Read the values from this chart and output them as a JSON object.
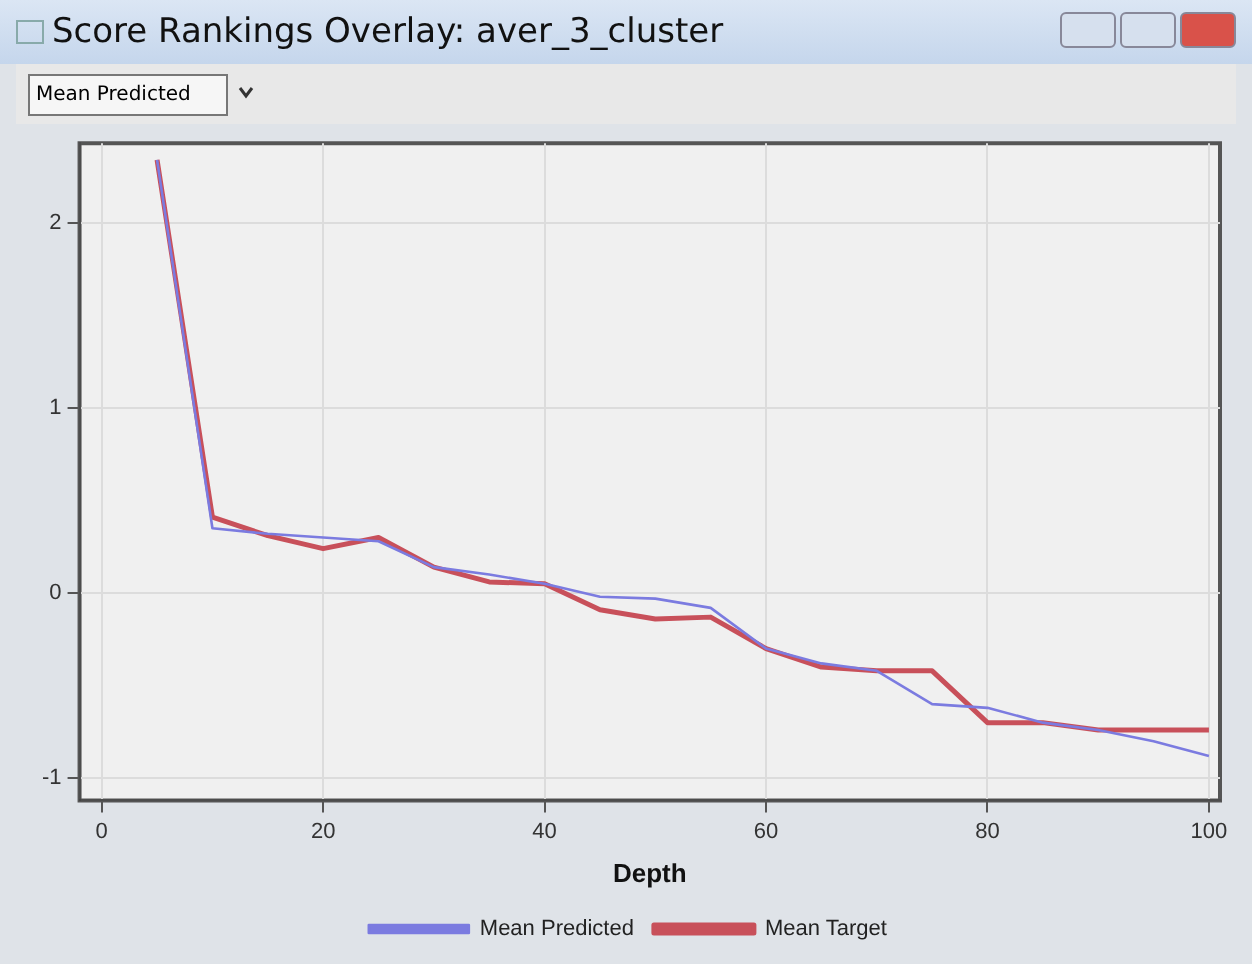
{
  "chart_data": {
    "type": "line",
    "title": "Score Rankings Overlay: aver_3_cluster",
    "annotations": [
      "Mean Predicted"
    ],
    "xlabel": "Depth",
    "x": [
      5,
      10,
      15,
      20,
      25,
      30,
      35,
      40,
      45,
      50,
      55,
      60,
      65,
      70,
      75,
      80,
      85,
      90,
      95,
      100
    ],
    "series": [
      {
        "name": "Mean Predicted",
        "color": "#7b7be0",
        "values": [
          2.34,
          0.35,
          0.32,
          0.3,
          0.28,
          0.14,
          0.1,
          0.05,
          -0.02,
          -0.03,
          -0.08,
          -0.3,
          -0.38,
          -0.42,
          -0.6,
          -0.62,
          -0.7,
          -0.74,
          -0.8,
          -0.88
        ]
      },
      {
        "name": "Mean Target",
        "color": "#c8505a",
        "values": [
          2.34,
          0.41,
          0.31,
          0.24,
          0.3,
          0.14,
          0.06,
          0.05,
          -0.09,
          -0.14,
          -0.13,
          -0.3,
          -0.4,
          -0.42,
          -0.42,
          -0.7,
          -0.7,
          -0.74,
          -0.74,
          -0.74
        ]
      }
    ],
    "xlim": [
      -2,
      101
    ],
    "xticks": [
      0,
      20,
      40,
      60,
      80,
      100
    ],
    "ylim": [
      -1.12,
      2.43
    ],
    "yticks": [
      -1,
      0,
      1,
      2
    ],
    "grid": true,
    "legend": "bottom",
    "marker": "none",
    "line_style": "solid"
  }
}
